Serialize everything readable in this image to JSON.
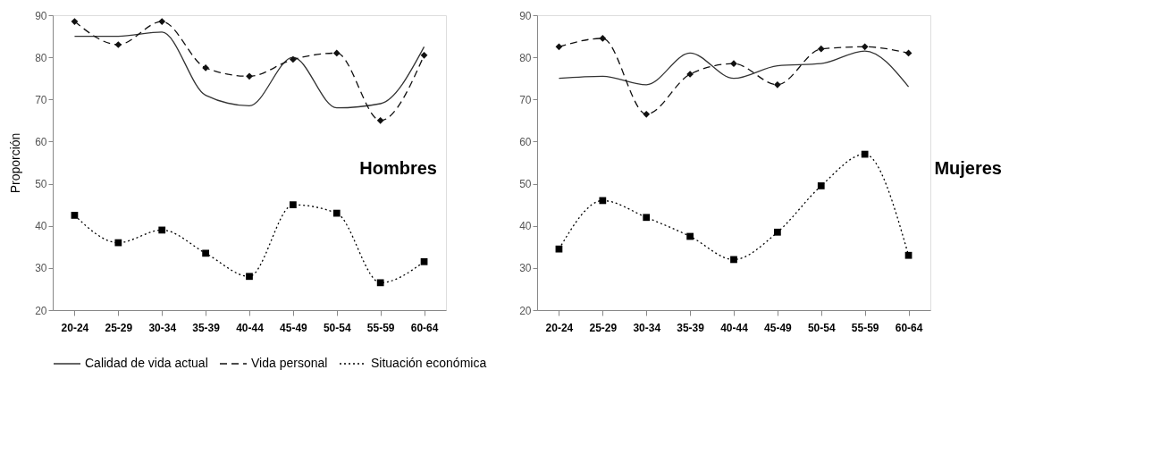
{
  "chart_data": [
    {
      "type": "line",
      "ylabel": "Proporción",
      "annotations": [
        "Hombres"
      ],
      "categories": [
        "20-24",
        "25-29",
        "30-34",
        "35-39",
        "40-44",
        "45-49",
        "50-54",
        "55-59",
        "60-64"
      ],
      "ylim": [
        20,
        90
      ],
      "yticks": [
        20,
        30,
        40,
        50,
        60,
        70,
        80,
        90
      ],
      "grid": false,
      "legend": "bottom",
      "series": [
        {
          "name": "Calidad de vida actual",
          "color": "#333333",
          "marker": "none",
          "line_style": "solid",
          "values": [
            85,
            85,
            86,
            71,
            68.5,
            80,
            68,
            69,
            82.5
          ]
        },
        {
          "name": "Vida personal",
          "color": "#111111",
          "marker": "diamond",
          "line_style": "dashed",
          "values": [
            88.5,
            83,
            88.5,
            77.5,
            75.5,
            79.5,
            81,
            65,
            80.5
          ]
        },
        {
          "name": "Situación económica",
          "color": "#000000",
          "marker": "square",
          "line_style": "dotted",
          "values": [
            42.5,
            36,
            39,
            33.5,
            28,
            45,
            43,
            26.5,
            31.5
          ]
        }
      ]
    },
    {
      "type": "line",
      "annotations": [
        "Mujeres"
      ],
      "categories": [
        "20-24",
        "25-29",
        "30-34",
        "35-39",
        "40-44",
        "45-49",
        "50-54",
        "55-59",
        "60-64"
      ],
      "ylim": [
        20,
        90
      ],
      "yticks": [
        20,
        30,
        40,
        50,
        60,
        70,
        80,
        90
      ],
      "grid": false,
      "legend": "bottom",
      "series": [
        {
          "name": "Calidad de vida actual",
          "color": "#333333",
          "marker": "none",
          "line_style": "solid",
          "values": [
            75,
            75.5,
            73.5,
            81,
            75,
            78,
            78.5,
            81.5,
            73
          ]
        },
        {
          "name": "Vida personal",
          "color": "#111111",
          "marker": "diamond",
          "line_style": "dashed",
          "values": [
            82.5,
            84.5,
            66.5,
            76,
            78.5,
            73.5,
            82,
            82.5,
            81
          ]
        },
        {
          "name": "Situación económica",
          "color": "#000000",
          "marker": "square",
          "line_style": "dotted",
          "values": [
            34.5,
            46,
            42,
            37.5,
            32,
            38.5,
            49.5,
            57,
            33
          ]
        }
      ]
    }
  ]
}
